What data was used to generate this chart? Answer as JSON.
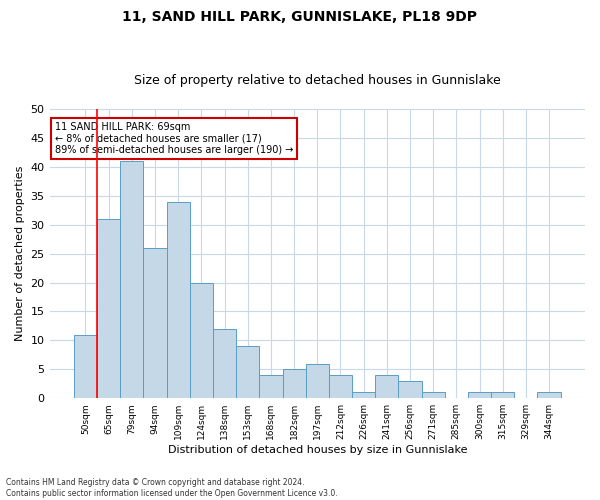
{
  "title1": "11, SAND HILL PARK, GUNNISLAKE, PL18 9DP",
  "title2": "Size of property relative to detached houses in Gunnislake",
  "xlabel": "Distribution of detached houses by size in Gunnislake",
  "ylabel": "Number of detached properties",
  "categories": [
    "50sqm",
    "65sqm",
    "79sqm",
    "94sqm",
    "109sqm",
    "124sqm",
    "138sqm",
    "153sqm",
    "168sqm",
    "182sqm",
    "197sqm",
    "212sqm",
    "226sqm",
    "241sqm",
    "256sqm",
    "271sqm",
    "285sqm",
    "300sqm",
    "315sqm",
    "329sqm",
    "344sqm"
  ],
  "values": [
    11,
    31,
    41,
    26,
    34,
    20,
    12,
    9,
    4,
    5,
    6,
    4,
    1,
    4,
    3,
    1,
    0,
    1,
    1,
    0,
    1
  ],
  "bar_color": "#c5d8e8",
  "bar_edge_color": "#5a9ec4",
  "red_line_x": 0.5,
  "ylim": [
    0,
    50
  ],
  "yticks": [
    0,
    5,
    10,
    15,
    20,
    25,
    30,
    35,
    40,
    45,
    50
  ],
  "annotation_title": "11 SAND HILL PARK: 69sqm",
  "annotation_line1": "← 8% of detached houses are smaller (17)",
  "annotation_line2": "89% of semi-detached houses are larger (190) →",
  "annotation_box_color": "#ffffff",
  "annotation_box_edge": "#cc0000",
  "footer1": "Contains HM Land Registry data © Crown copyright and database right 2024.",
  "footer2": "Contains public sector information licensed under the Open Government Licence v3.0.",
  "background_color": "#ffffff",
  "grid_color": "#c8d8e8",
  "title1_fontsize": 10,
  "title2_fontsize": 9,
  "xlabel_fontsize": 8,
  "ylabel_fontsize": 8
}
